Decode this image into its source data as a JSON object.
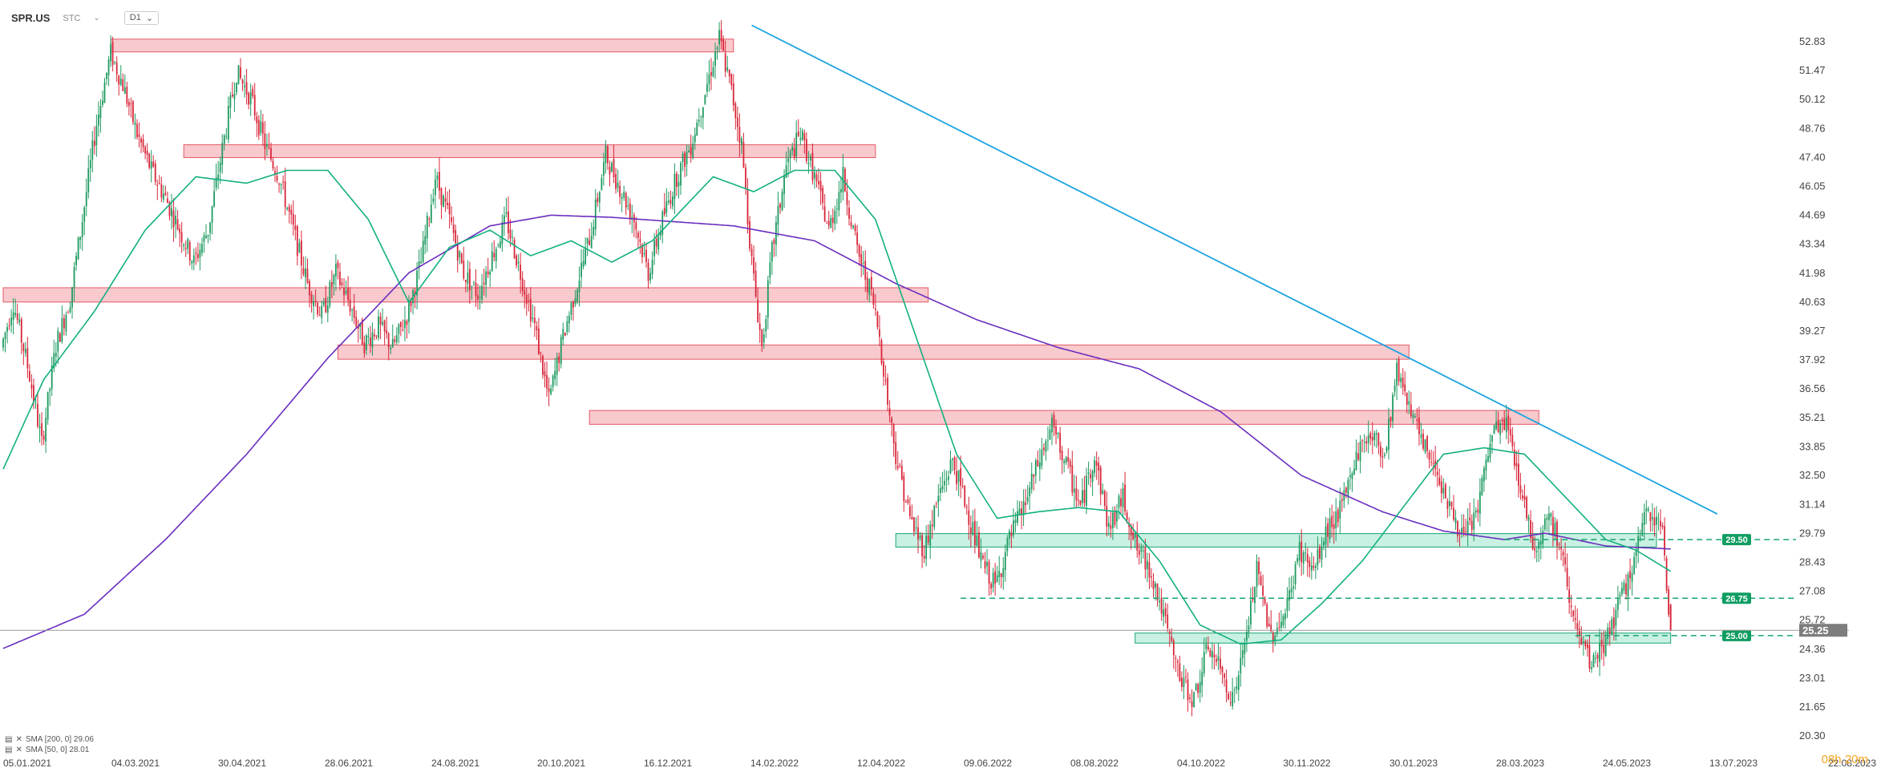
{
  "header": {
    "symbol": "SPR.US",
    "exchange": "STC",
    "timeframe": "D1",
    "chevron_icon": "chevron-down-icon"
  },
  "legend": {
    "items": [
      {
        "label": "SMA [200, 0] 29.06",
        "color": "#6a2dbf"
      },
      {
        "label": "SMA [50, 0] 28.01",
        "color": "#0eaa7a"
      }
    ]
  },
  "countdown": {
    "hours": "08h",
    "minutes": "20m"
  },
  "colors": {
    "bull": "#1f9a60",
    "bear": "#d8273a",
    "sma200": "#6a2dbf",
    "sma50": "#12b07f",
    "trendline": "#1aa3e0",
    "resistance_fill": "#f8c9cd",
    "resistance_stroke": "#e35a66",
    "support_fill": "#bfeede",
    "support_stroke": "#18a572",
    "current_price_bg": "#7d7d7d"
  },
  "chart_data": {
    "type": "candlestick",
    "symbol": "SPR.US",
    "timeframe": "D1",
    "y_ticks": [
      52.83,
      51.47,
      50.12,
      48.76,
      47.4,
      46.05,
      44.69,
      43.34,
      41.98,
      40.63,
      39.27,
      37.92,
      36.56,
      35.21,
      33.85,
      32.5,
      31.14,
      29.79,
      28.43,
      27.08,
      25.72,
      24.36,
      23.01,
      21.65,
      20.3
    ],
    "y_tick_labels": [
      "52.83",
      "51.47",
      "50.12",
      "48.76",
      "47.40",
      "46.05",
      "44.69",
      "43.34",
      "41.98",
      "40.63",
      "39.27",
      "37.92",
      "36.56",
      "35.21",
      "33.85",
      "32.50",
      "31.14",
      "29.79",
      "28.43",
      "27.08",
      "25.72",
      "24.36",
      "23.01",
      "21.65",
      "20.30"
    ],
    "ylim": [
      20.3,
      53.8
    ],
    "x_ticks": [
      "05.01.2021",
      "04.03.2021",
      "30.04.2021",
      "28.06.2021",
      "24.08.2021",
      "20.10.2021",
      "16.12.2021",
      "14.02.2022",
      "12.04.2022",
      "09.06.2022",
      "08.08.2022",
      "04.10.2022",
      "30.11.2022",
      "30.01.2023",
      "28.03.2023",
      "24.05.2023",
      "13.07.2023",
      "22.08.2023"
    ],
    "price_anchors": [
      [
        0,
        38.5
      ],
      [
        6,
        40.6
      ],
      [
        14,
        37.2
      ],
      [
        20,
        34.0
      ],
      [
        27,
        38.6
      ],
      [
        34,
        40.8
      ],
      [
        40,
        44.5
      ],
      [
        47,
        49.0
      ],
      [
        54,
        52.3
      ],
      [
        60,
        50.8
      ],
      [
        67,
        48.5
      ],
      [
        74,
        46.8
      ],
      [
        81,
        45.5
      ],
      [
        88,
        44.0
      ],
      [
        95,
        42.5
      ],
      [
        102,
        44.0
      ],
      [
        109,
        47.8
      ],
      [
        116,
        51.4
      ],
      [
        123,
        50.2
      ],
      [
        130,
        48.0
      ],
      [
        137,
        46.5
      ],
      [
        144,
        44.0
      ],
      [
        151,
        41.5
      ],
      [
        158,
        40.0
      ],
      [
        165,
        42.0
      ],
      [
        172,
        40.5
      ],
      [
        179,
        38.7
      ],
      [
        186,
        39.5
      ],
      [
        193,
        38.5
      ],
      [
        200,
        40.0
      ],
      [
        207,
        42.5
      ],
      [
        214,
        46.5
      ],
      [
        221,
        44.5
      ],
      [
        228,
        42.0
      ],
      [
        235,
        41.0
      ],
      [
        242,
        42.8
      ],
      [
        249,
        44.5
      ],
      [
        256,
        42.0
      ],
      [
        263,
        39.5
      ],
      [
        270,
        36.0
      ],
      [
        277,
        39.0
      ],
      [
        284,
        41.5
      ],
      [
        291,
        44.0
      ],
      [
        298,
        47.5
      ],
      [
        305,
        46.0
      ],
      [
        312,
        44.5
      ],
      [
        319,
        42.0
      ],
      [
        326,
        44.5
      ],
      [
        333,
        46.5
      ],
      [
        340,
        48.0
      ],
      [
        347,
        50.5
      ],
      [
        354,
        53.0
      ],
      [
        360,
        50.5
      ],
      [
        365,
        48.0
      ],
      [
        370,
        42.5
      ],
      [
        375,
        38.5
      ],
      [
        380,
        43.0
      ],
      [
        387,
        47.0
      ],
      [
        394,
        48.5
      ],
      [
        401,
        46.5
      ],
      [
        408,
        44.0
      ],
      [
        415,
        46.5
      ],
      [
        422,
        43.0
      ],
      [
        429,
        41.0
      ],
      [
        433,
        39.0
      ],
      [
        437,
        36.0
      ],
      [
        441,
        33.5
      ],
      [
        448,
        30.5
      ],
      [
        455,
        29.0
      ],
      [
        462,
        31.5
      ],
      [
        469,
        33.2
      ],
      [
        476,
        31.0
      ],
      [
        483,
        28.5
      ],
      [
        490,
        27.3
      ],
      [
        497,
        29.5
      ],
      [
        504,
        31.0
      ],
      [
        511,
        33.0
      ],
      [
        518,
        34.8
      ],
      [
        525,
        33.0
      ],
      [
        532,
        31.0
      ],
      [
        539,
        33.5
      ],
      [
        546,
        30.0
      ],
      [
        553,
        31.5
      ],
      [
        560,
        29.0
      ],
      [
        567,
        28.0
      ],
      [
        574,
        25.5
      ],
      [
        581,
        23.0
      ],
      [
        588,
        22.0
      ],
      [
        595,
        24.5
      ],
      [
        602,
        23.2
      ],
      [
        607,
        22.0
      ],
      [
        612,
        24.0
      ],
      [
        619,
        28.0
      ],
      [
        626,
        25.0
      ],
      [
        633,
        26.0
      ],
      [
        640,
        29.0
      ],
      [
        647,
        28.0
      ],
      [
        654,
        30.0
      ],
      [
        661,
        31.0
      ],
      [
        668,
        33.5
      ],
      [
        675,
        34.5
      ],
      [
        682,
        33.5
      ],
      [
        688,
        37.5
      ],
      [
        694,
        36.0
      ],
      [
        700,
        34.0
      ],
      [
        707,
        33.0
      ],
      [
        714,
        31.0
      ],
      [
        721,
        29.5
      ],
      [
        728,
        31.0
      ],
      [
        735,
        34.5
      ],
      [
        742,
        35.0
      ],
      [
        749,
        32.0
      ],
      [
        756,
        29.0
      ],
      [
        763,
        30.8
      ],
      [
        770,
        28.5
      ],
      [
        777,
        25.0
      ],
      [
        784,
        23.5
      ],
      [
        791,
        24.8
      ],
      [
        798,
        26.5
      ],
      [
        805,
        28.5
      ],
      [
        812,
        31.0
      ],
      [
        819,
        30.0
      ],
      [
        822,
        26.0
      ]
    ],
    "moving_averages": [
      {
        "name": "SMA [200, 0]",
        "value": 29.06,
        "anchors": [
          [
            0,
            24.4
          ],
          [
            40,
            26.0
          ],
          [
            80,
            29.5
          ],
          [
            120,
            33.5
          ],
          [
            160,
            38.0
          ],
          [
            200,
            42.0
          ],
          [
            240,
            44.2
          ],
          [
            270,
            44.7
          ],
          [
            300,
            44.6
          ],
          [
            330,
            44.4
          ],
          [
            360,
            44.2
          ],
          [
            400,
            43.5
          ],
          [
            440,
            41.5
          ],
          [
            480,
            39.8
          ],
          [
            520,
            38.5
          ],
          [
            560,
            37.5
          ],
          [
            600,
            35.5
          ],
          [
            640,
            32.5
          ],
          [
            680,
            30.8
          ],
          [
            710,
            29.9
          ],
          [
            740,
            29.5
          ],
          [
            760,
            29.8
          ],
          [
            790,
            29.2
          ],
          [
            822,
            29.06
          ]
        ]
      },
      {
        "name": "SMA [50, 0]",
        "value": 28.01,
        "anchors": [
          [
            0,
            32.8
          ],
          [
            20,
            37.0
          ],
          [
            45,
            40.2
          ],
          [
            70,
            44.0
          ],
          [
            95,
            46.5
          ],
          [
            120,
            46.2
          ],
          [
            140,
            46.8
          ],
          [
            160,
            46.8
          ],
          [
            180,
            44.5
          ],
          [
            200,
            40.6
          ],
          [
            220,
            43.2
          ],
          [
            240,
            44.0
          ],
          [
            260,
            42.8
          ],
          [
            280,
            43.5
          ],
          [
            300,
            42.5
          ],
          [
            320,
            43.5
          ],
          [
            340,
            45.5
          ],
          [
            350,
            46.5
          ],
          [
            370,
            45.8
          ],
          [
            390,
            46.8
          ],
          [
            410,
            46.8
          ],
          [
            430,
            44.5
          ],
          [
            450,
            39.0
          ],
          [
            470,
            33.5
          ],
          [
            490,
            30.5
          ],
          [
            510,
            30.8
          ],
          [
            530,
            31.0
          ],
          [
            550,
            30.8
          ],
          [
            570,
            28.5
          ],
          [
            590,
            25.5
          ],
          [
            610,
            24.6
          ],
          [
            630,
            24.8
          ],
          [
            650,
            26.5
          ],
          [
            670,
            28.5
          ],
          [
            690,
            31.0
          ],
          [
            710,
            33.5
          ],
          [
            730,
            33.8
          ],
          [
            750,
            33.5
          ],
          [
            770,
            31.5
          ],
          [
            790,
            29.5
          ],
          [
            805,
            29.0
          ],
          [
            822,
            28.01
          ]
        ]
      }
    ],
    "trendline": {
      "from": [
        369,
        53.6
      ],
      "to": [
        845,
        30.7
      ]
    },
    "resistance_zones": [
      {
        "from": 53,
        "to": 360,
        "low": 52.35,
        "high": 52.95
      },
      {
        "from": 89,
        "to": 430,
        "low": 47.4,
        "high": 48.0
      },
      {
        "from": 0,
        "to": 456,
        "low": 40.63,
        "high": 41.3
      },
      {
        "from": 165,
        "to": 693,
        "low": 37.95,
        "high": 38.62
      },
      {
        "from": 289,
        "to": 757,
        "low": 34.9,
        "high": 35.55
      }
    ],
    "support_zones": [
      {
        "from": 440,
        "to": 815,
        "low": 29.15,
        "high": 29.78
      },
      {
        "from": 558,
        "to": 822,
        "low": 24.65,
        "high": 25.12
      }
    ],
    "levels": [
      {
        "value": 29.5,
        "label": "29.50",
        "from": 740
      },
      {
        "value": 26.75,
        "label": "26.75",
        "from": 472
      },
      {
        "value": 25.0,
        "label": "25.00",
        "from": 775
      }
    ],
    "current_price": {
      "value": 25.25,
      "label": "25.25"
    },
    "last_candle": {
      "open": 26.45,
      "high": 26.5,
      "low": 25.2,
      "close": 25.25
    }
  }
}
